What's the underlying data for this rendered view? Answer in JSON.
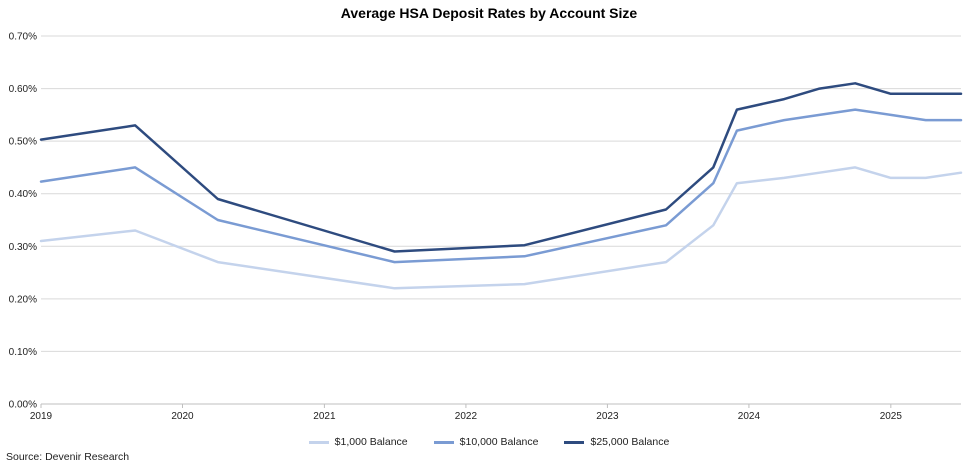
{
  "chart_data": {
    "type": "line",
    "title": "Average HSA Deposit Rates by Account Size",
    "xlabel": "",
    "ylabel": "",
    "ylim": [
      0,
      0.7
    ],
    "xlim": [
      "2019-01-01",
      "2025-07-01"
    ],
    "y_ticks": [
      "0.00%",
      "0.10%",
      "0.20%",
      "0.30%",
      "0.40%",
      "0.50%",
      "0.60%",
      "0.70%"
    ],
    "x_ticks": [
      "2019",
      "2020",
      "2021",
      "2022",
      "2023",
      "2024",
      "2025"
    ],
    "grid": true,
    "legend_position": "bottom",
    "series": [
      {
        "name": "$1,000 Balance",
        "color": "#c4d3ec",
        "x": [
          "2019-01-01",
          "2019-09-01",
          "2020-04-01",
          "2021-07-01",
          "2022-06-01",
          "2023-06-01",
          "2023-10-01",
          "2023-12-01",
          "2024-04-01",
          "2024-07-01",
          "2024-10-01",
          "2025-01-01",
          "2025-04-01",
          "2025-07-01"
        ],
        "values": [
          0.31,
          0.33,
          0.27,
          0.22,
          0.228,
          0.27,
          0.34,
          0.42,
          0.43,
          0.44,
          0.45,
          0.43,
          0.43,
          0.44
        ]
      },
      {
        "name": "$10,000 Balance",
        "color": "#7a9bd3",
        "x": [
          "2019-01-01",
          "2019-09-01",
          "2020-04-01",
          "2021-07-01",
          "2022-06-01",
          "2023-06-01",
          "2023-10-01",
          "2023-12-01",
          "2024-04-01",
          "2024-07-01",
          "2024-10-01",
          "2025-01-01",
          "2025-04-01",
          "2025-07-01"
        ],
        "values": [
          0.423,
          0.45,
          0.35,
          0.27,
          0.281,
          0.34,
          0.42,
          0.52,
          0.54,
          0.55,
          0.56,
          0.55,
          0.54,
          0.54
        ]
      },
      {
        "name": "$25,000 Balance",
        "color": "#2e4b7f",
        "x": [
          "2019-01-01",
          "2019-09-01",
          "2020-04-01",
          "2021-07-01",
          "2022-06-01",
          "2023-06-01",
          "2023-10-01",
          "2023-12-01",
          "2024-04-01",
          "2024-07-01",
          "2024-10-01",
          "2025-01-01",
          "2025-04-01",
          "2025-07-01"
        ],
        "values": [
          0.503,
          0.53,
          0.39,
          0.29,
          0.302,
          0.37,
          0.45,
          0.56,
          0.58,
          0.6,
          0.61,
          0.59,
          0.59,
          0.59
        ]
      }
    ]
  },
  "source": "Source: Devenir Research"
}
